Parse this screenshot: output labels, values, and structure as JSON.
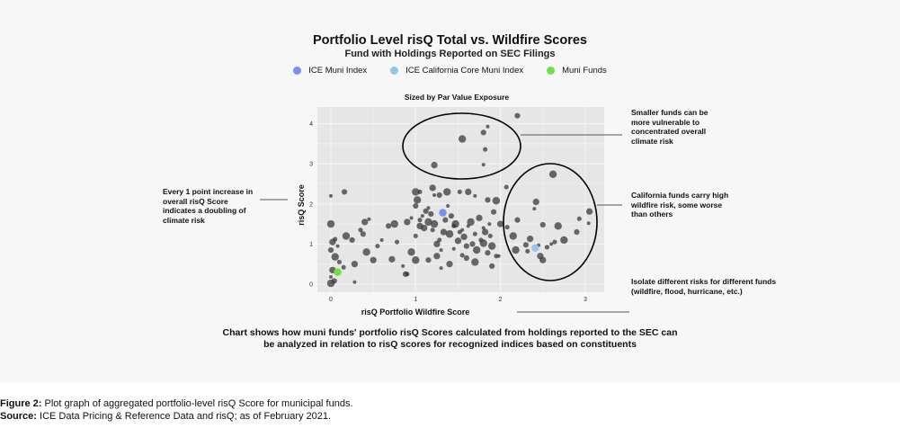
{
  "header": {
    "title": "Portfolio Level risQ Total vs. Wildfire Scores",
    "subtitle": "Fund with Holdings Reported on SEC Filings"
  },
  "legend": [
    {
      "label": "ICE Muni Index",
      "color": "#7b8ff2"
    },
    {
      "label": "ICE California Core Muni Index",
      "color": "#8fc6ea"
    },
    {
      "label": "Muni Funds",
      "color": "#6fe048"
    }
  ],
  "plot_subtitle": "Sized by Par Value Exposure",
  "axes": {
    "xlabel": "risQ Portfolio Wildfire Score",
    "ylabel": "risQ Score",
    "xticks": [
      "0",
      "1",
      "2",
      "3"
    ],
    "yticks": [
      "0",
      "1",
      "2",
      "3",
      "4"
    ]
  },
  "annotations": {
    "left": "Every 1 point increase in overall risQ Score indicates a doubling of climate risk",
    "top_right": "Smaller funds can be more vulnerable to concentrated overall climate risk",
    "mid_right": "California funds carry high wildfire risk, some worse than others",
    "bottom_right": "Isolate different risks for different funds (wildfire, flood, hurricane, etc.)"
  },
  "caption": {
    "line1": "Chart shows how muni funds' portfolio risQ Scores calculated from holdings reported to the SEC can",
    "line2": "be analyzed in relation to risQ scores for recognized indices based on constituents"
  },
  "figure": {
    "label": "Figure 2:",
    "text": " Plot graph of aggregated portfolio-level risQ Score for municipal funds.",
    "source_label": "Source:",
    "source_text": " ICE Data Pricing & Reference Data and risQ; as of February 2021."
  },
  "chart_data": {
    "type": "scatter",
    "title": "Portfolio Level risQ Total vs. Wildfire Scores",
    "subtitle": "Fund with Holdings Reported on SEC Filings — Sized by Par Value Exposure",
    "xlabel": "risQ Portfolio Wildfire Score",
    "ylabel": "risQ Score",
    "xlim": [
      -0.15,
      3.2
    ],
    "ylim": [
      -0.15,
      4.35
    ],
    "grid": true,
    "legend_position": "top",
    "series": [
      {
        "name": "ICE Muni Index",
        "color": "#7b8ff2",
        "points": [
          [
            1.32,
            1.78
          ]
        ]
      },
      {
        "name": "ICE California Core Muni Index",
        "color": "#8fc6ea",
        "points": [
          [
            2.41,
            0.9
          ]
        ]
      },
      {
        "name": "Muni Funds",
        "color": "#6fe048",
        "points": [
          [
            0.08,
            0.3
          ]
        ]
      },
      {
        "name": "Funds",
        "color": "#333333",
        "points": [
          [
            1.85,
            3.93
          ],
          [
            1.8,
            3.78
          ],
          [
            1.55,
            3.62
          ],
          [
            1.82,
            3.36
          ],
          [
            1.22,
            2.97
          ],
          [
            1.8,
            2.98
          ],
          [
            2.2,
            4.2
          ],
          [
            2.62,
            2.74
          ],
          [
            2.07,
            2.42
          ],
          [
            2.42,
            2.05
          ],
          [
            2.4,
            1.88
          ],
          [
            2.5,
            1.48
          ],
          [
            2.68,
            1.45
          ],
          [
            2.93,
            1.63
          ],
          [
            3.05,
            1.81
          ],
          [
            3.04,
            1.52
          ],
          [
            2.9,
            1.3
          ],
          [
            2.75,
            1.1
          ],
          [
            2.64,
            1.05
          ],
          [
            2.35,
            1.13
          ],
          [
            2.45,
            0.97
          ],
          [
            2.3,
            0.98
          ],
          [
            2.18,
            0.85
          ],
          [
            2.32,
            0.82
          ],
          [
            2.5,
            0.6
          ],
          [
            2.6,
            1.0
          ],
          [
            2.2,
            1.6
          ],
          [
            2.15,
            1.2
          ],
          [
            2.55,
            0.92
          ],
          [
            2.47,
            0.7
          ],
          [
            0.0,
            2.2
          ],
          [
            0.16,
            2.3
          ],
          [
            0.0,
            1.5
          ],
          [
            0.05,
            1.12
          ],
          [
            0.02,
            1.05
          ],
          [
            0.08,
            0.95
          ],
          [
            0.0,
            0.85
          ],
          [
            0.05,
            0.68
          ],
          [
            0.1,
            0.55
          ],
          [
            0.02,
            0.35
          ],
          [
            0.0,
            0.18
          ],
          [
            0.04,
            0.08
          ],
          [
            0.0,
            0.02
          ],
          [
            0.15,
            0.42
          ],
          [
            0.28,
            0.5
          ],
          [
            0.28,
            0.05
          ],
          [
            0.25,
            1.1
          ],
          [
            0.18,
            1.2
          ],
          [
            0.35,
            1.35
          ],
          [
            0.4,
            1.55
          ],
          [
            0.45,
            1.62
          ],
          [
            0.38,
            1.25
          ],
          [
            0.42,
            0.8
          ],
          [
            0.55,
            0.95
          ],
          [
            0.5,
            0.6
          ],
          [
            0.6,
            1.1
          ],
          [
            0.68,
            1.45
          ],
          [
            0.75,
            1.5
          ],
          [
            0.78,
            1.05
          ],
          [
            0.72,
            0.62
          ],
          [
            0.85,
            0.45
          ],
          [
            0.88,
            0.25
          ],
          [
            0.95,
            0.8
          ],
          [
            1.0,
            1.2
          ],
          [
            1.05,
            1.45
          ],
          [
            1.08,
            1.7
          ],
          [
            1.12,
            1.82
          ],
          [
            1.15,
            1.55
          ],
          [
            1.2,
            1.35
          ],
          [
            1.25,
            1.0
          ],
          [
            1.3,
            0.85
          ],
          [
            1.35,
            1.6
          ],
          [
            1.4,
            1.25
          ],
          [
            1.45,
            1.45
          ],
          [
            1.5,
            1.08
          ],
          [
            1.55,
            1.35
          ],
          [
            1.6,
            0.95
          ],
          [
            1.65,
            1.55
          ],
          [
            1.7,
            1.25
          ],
          [
            1.75,
            1.65
          ],
          [
            1.8,
            1.4
          ],
          [
            1.85,
            0.78
          ],
          [
            1.9,
            0.95
          ],
          [
            1.95,
            0.7
          ],
          [
            0.9,
            1.55
          ],
          [
            0.95,
            1.65
          ],
          [
            1.0,
            1.95
          ],
          [
            1.02,
            2.1
          ],
          [
            1.05,
            1.6
          ],
          [
            1.1,
            1.4
          ],
          [
            1.15,
            1.9
          ],
          [
            1.18,
            1.75
          ],
          [
            1.22,
            1.5
          ],
          [
            1.28,
            1.1
          ],
          [
            1.33,
            1.3
          ],
          [
            1.38,
            1.95
          ],
          [
            1.42,
            1.7
          ],
          [
            1.47,
            1.5
          ],
          [
            1.52,
            1.3
          ],
          [
            1.57,
            1.18
          ],
          [
            1.62,
            1.45
          ],
          [
            1.67,
            1.0
          ],
          [
            1.72,
            0.85
          ],
          [
            1.77,
            1.1
          ],
          [
            1.82,
            1.3
          ],
          [
            1.87,
            1.5
          ],
          [
            1.92,
            1.8
          ],
          [
            1.0,
            2.3
          ],
          [
            1.05,
            2.3
          ],
          [
            1.2,
            2.4
          ],
          [
            1.22,
            2.22
          ],
          [
            1.28,
            2.22
          ],
          [
            1.37,
            2.3
          ],
          [
            1.52,
            2.3
          ],
          [
            1.62,
            2.3
          ],
          [
            1.7,
            2.2
          ],
          [
            1.85,
            2.1
          ],
          [
            1.95,
            2.08
          ],
          [
            2.08,
            1.42
          ],
          [
            2.0,
            1.5
          ],
          [
            1.98,
            0.7
          ],
          [
            1.9,
            0.45
          ],
          [
            1.7,
            0.55
          ],
          [
            1.55,
            0.72
          ],
          [
            1.4,
            0.5
          ],
          [
            1.3,
            0.4
          ],
          [
            1.15,
            0.6
          ],
          [
            1.0,
            0.6
          ],
          [
            0.9,
            0.25
          ],
          [
            1.25,
            0.7
          ],
          [
            1.45,
            0.88
          ],
          [
            1.6,
            0.65
          ],
          [
            1.8,
            1.02
          ],
          [
            1.88,
            1.2
          ]
        ]
      }
    ]
  }
}
